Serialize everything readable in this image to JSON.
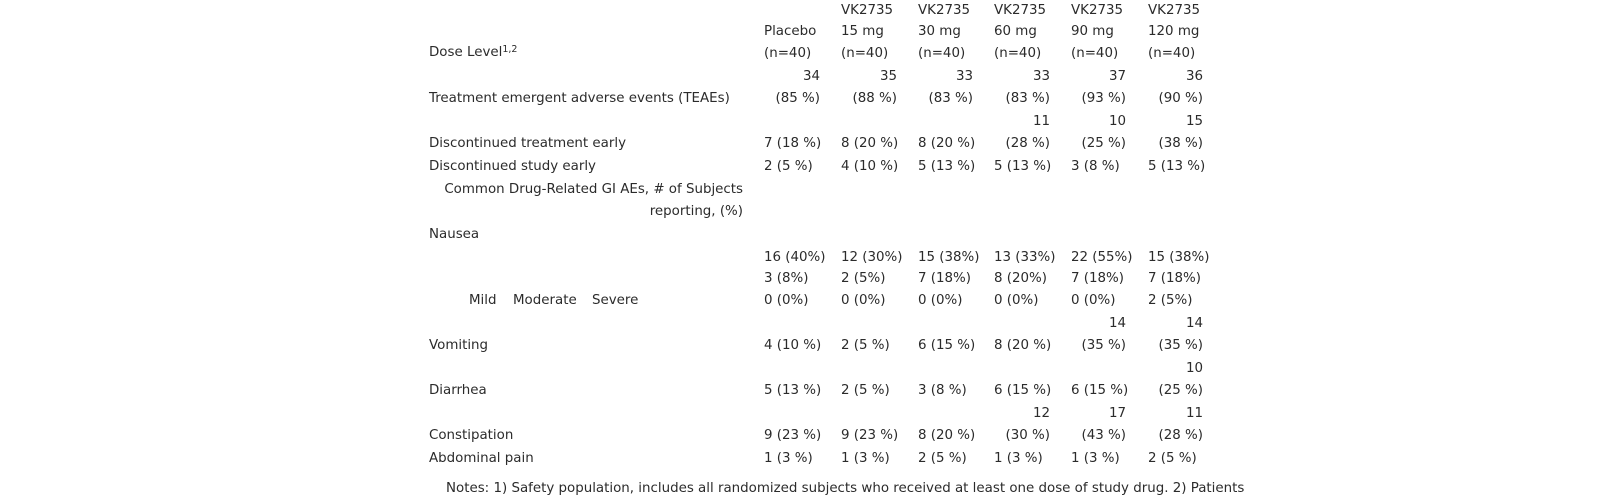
{
  "header": {
    "dose_level_label": "Dose Level",
    "dose_level_sup": "1,2",
    "columns": [
      {
        "line1": "",
        "line2": "Placebo",
        "line3": "(n=40)"
      },
      {
        "line1": "VK2735",
        "line2": "15 mg",
        "line3": "(n=40)"
      },
      {
        "line1": "VK2735",
        "line2": "30 mg",
        "line3": "(n=40)"
      },
      {
        "line1": "VK2735",
        "line2": "60 mg",
        "line3": "(n=40)"
      },
      {
        "line1": "VK2735",
        "line2": "90 mg",
        "line3": "(n=40)"
      },
      {
        "line1": "VK2735",
        "line2": "120 mg",
        "line3": "(n=40)"
      }
    ]
  },
  "rows": {
    "teae": {
      "label": "Treatment emergent adverse events (TEAEs)",
      "cells": [
        {
          "count": "34",
          "pct": "(85 %)"
        },
        {
          "count": "35",
          "pct": "(88 %)"
        },
        {
          "count": "33",
          "pct": "(83 %)"
        },
        {
          "count": "33",
          "pct": "(83 %)"
        },
        {
          "count": "37",
          "pct": "(93 %)"
        },
        {
          "count": "36",
          "pct": "(90 %)"
        }
      ]
    },
    "disc_treatment": {
      "label": "Discontinued treatment early",
      "values": [
        "7 (18 %)",
        "8 (20 %)",
        "8 (20 %)"
      ],
      "wrapped": [
        {
          "count": "11",
          "pct": "(28 %)"
        },
        {
          "count": "10",
          "pct": "(25 %)"
        },
        {
          "count": "15",
          "pct": "(38 %)"
        }
      ]
    },
    "disc_study": {
      "label": "Discontinued study early",
      "values": [
        "2 (5 %)",
        "4 (10 %)",
        "5 (13 %)",
        "5 (13 %)",
        "3 (8 %)",
        "5 (13 %)"
      ]
    },
    "gi_header": {
      "line1": "Common Drug-Related GI AEs, # of Subjects",
      "line2": "reporting, (%)"
    },
    "nausea": {
      "label": "Nausea",
      "sub_labels": [
        "Mild",
        "Moderate",
        "Severe"
      ],
      "mild": [
        "16 (40%)",
        "12 (30%)",
        "15 (38%)",
        "13 (33%)",
        "22 (55%)",
        "15 (38%)"
      ],
      "moderate": [
        "3 (8%)",
        "2 (5%)",
        "7 (18%)",
        "8 (20%)",
        "7 (18%)",
        "7 (18%)"
      ],
      "severe": [
        "0 (0%)",
        "0 (0%)",
        "0 (0%)",
        "0 (0%)",
        "0 (0%)",
        "2 (5%)"
      ]
    },
    "vomiting": {
      "label": "Vomiting",
      "values": [
        "4 (10 %)",
        "2 (5 %)",
        "6 (15 %)",
        "8 (20 %)"
      ],
      "wrapped": [
        {
          "count": "14",
          "pct": "(35 %)"
        },
        {
          "count": "14",
          "pct": "(35 %)"
        }
      ]
    },
    "diarrhea": {
      "label": "Diarrhea",
      "values": [
        "5 (13 %)",
        "2 (5 %)",
        "3 (8 %)",
        "6 (15 %)",
        "6 (15 %)"
      ],
      "wrapped": [
        {
          "count": "10",
          "pct": "(25 %)"
        }
      ]
    },
    "constipation": {
      "label": "Constipation",
      "values": [
        "9 (23 %)",
        "9 (23 %)",
        "8 (20 %)"
      ],
      "wrapped": [
        {
          "count": "12",
          "pct": "(30 %)"
        },
        {
          "count": "17",
          "pct": "(43 %)"
        },
        {
          "count": "11",
          "pct": "(28 %)"
        }
      ]
    },
    "abdominal": {
      "label": "Abdominal pain",
      "values": [
        "1 (3 %)",
        "1 (3 %)",
        "2 (5 %)",
        "1 (3 %)",
        "1 (3 %)",
        "2 (5 %)"
      ]
    }
  },
  "notes": "Notes: 1) Safety population, includes all randomized subjects who received at least one dose of study drug. 2) Patients"
}
